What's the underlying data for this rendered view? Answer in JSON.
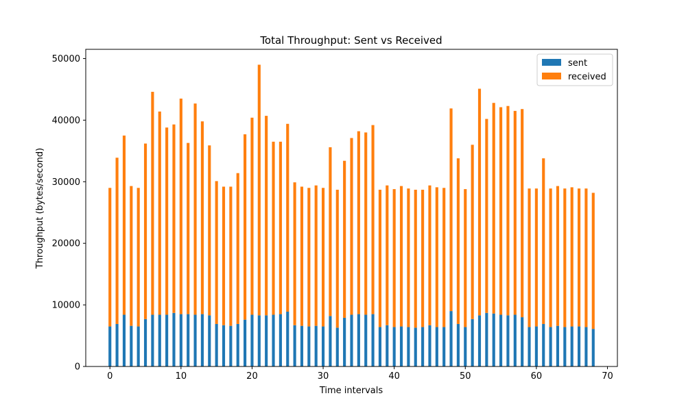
{
  "chart_data": {
    "type": "bar",
    "stacked": true,
    "title": "Total Throughput: Sent vs Received",
    "xlabel": "Time intervals",
    "ylabel": "Throughput (bytes/second)",
    "xlim": [
      -3.4,
      71.4
    ],
    "ylim": [
      0,
      51500
    ],
    "xticks": [
      0,
      10,
      20,
      30,
      40,
      50,
      60,
      70
    ],
    "xtick_labels": [
      "0",
      "10",
      "20",
      "30",
      "40",
      "50",
      "60",
      "70"
    ],
    "yticks": [
      0,
      10000,
      20000,
      30000,
      40000,
      50000
    ],
    "ytick_labels": [
      "0",
      "10000",
      "20000",
      "30000",
      "40000",
      "50000"
    ],
    "grid": false,
    "legend_position": "top-right",
    "x": [
      0,
      1,
      2,
      3,
      4,
      5,
      6,
      7,
      8,
      9,
      10,
      11,
      12,
      13,
      14,
      15,
      16,
      17,
      18,
      19,
      20,
      21,
      22,
      23,
      24,
      25,
      26,
      27,
      28,
      29,
      30,
      31,
      32,
      33,
      34,
      35,
      36,
      37,
      38,
      39,
      40,
      41,
      42,
      43,
      44,
      45,
      46,
      47,
      48,
      49,
      50,
      51,
      52,
      53,
      54,
      55,
      56,
      57,
      58,
      59,
      60,
      61,
      62,
      63,
      64,
      65,
      66,
      67,
      68
    ],
    "series": [
      {
        "name": "sent",
        "color": "#1f77b4",
        "values": [
          6500,
          6900,
          8400,
          6600,
          6500,
          7700,
          8400,
          8400,
          8400,
          8700,
          8500,
          8500,
          8400,
          8500,
          8300,
          6900,
          6700,
          6600,
          6900,
          7600,
          8400,
          8300,
          8300,
          8400,
          8500,
          8900,
          6700,
          6600,
          6500,
          6600,
          6500,
          8200,
          6300,
          7900,
          8400,
          8500,
          8400,
          8500,
          6400,
          6700,
          6400,
          6500,
          6400,
          6300,
          6400,
          6700,
          6400,
          6400,
          9000,
          6900,
          6400,
          7700,
          8300,
          8700,
          8600,
          8400,
          8300,
          8400,
          8000,
          6400,
          6500,
          6900,
          6400,
          6600,
          6400,
          6500,
          6500,
          6400,
          6100
        ]
      },
      {
        "name": "received",
        "color": "#ff7f0e",
        "values": [
          22500,
          27000,
          29100,
          22700,
          22500,
          28500,
          36200,
          33000,
          30400,
          30600,
          35000,
          27800,
          34300,
          31300,
          27600,
          23200,
          22500,
          22600,
          24500,
          30100,
          32000,
          40700,
          32400,
          28100,
          28000,
          30500,
          23200,
          22600,
          22500,
          22800,
          22500,
          27400,
          22400,
          25500,
          28700,
          29700,
          29600,
          30700,
          22300,
          22700,
          22400,
          22800,
          22500,
          22400,
          22300,
          22700,
          22700,
          22600,
          32900,
          26900,
          22400,
          28300,
          36800,
          31500,
          34200,
          33700,
          34000,
          33100,
          33800,
          22500,
          22400,
          26900,
          22500,
          22700,
          22500,
          22600,
          22400,
          22500,
          22100
        ]
      }
    ]
  }
}
